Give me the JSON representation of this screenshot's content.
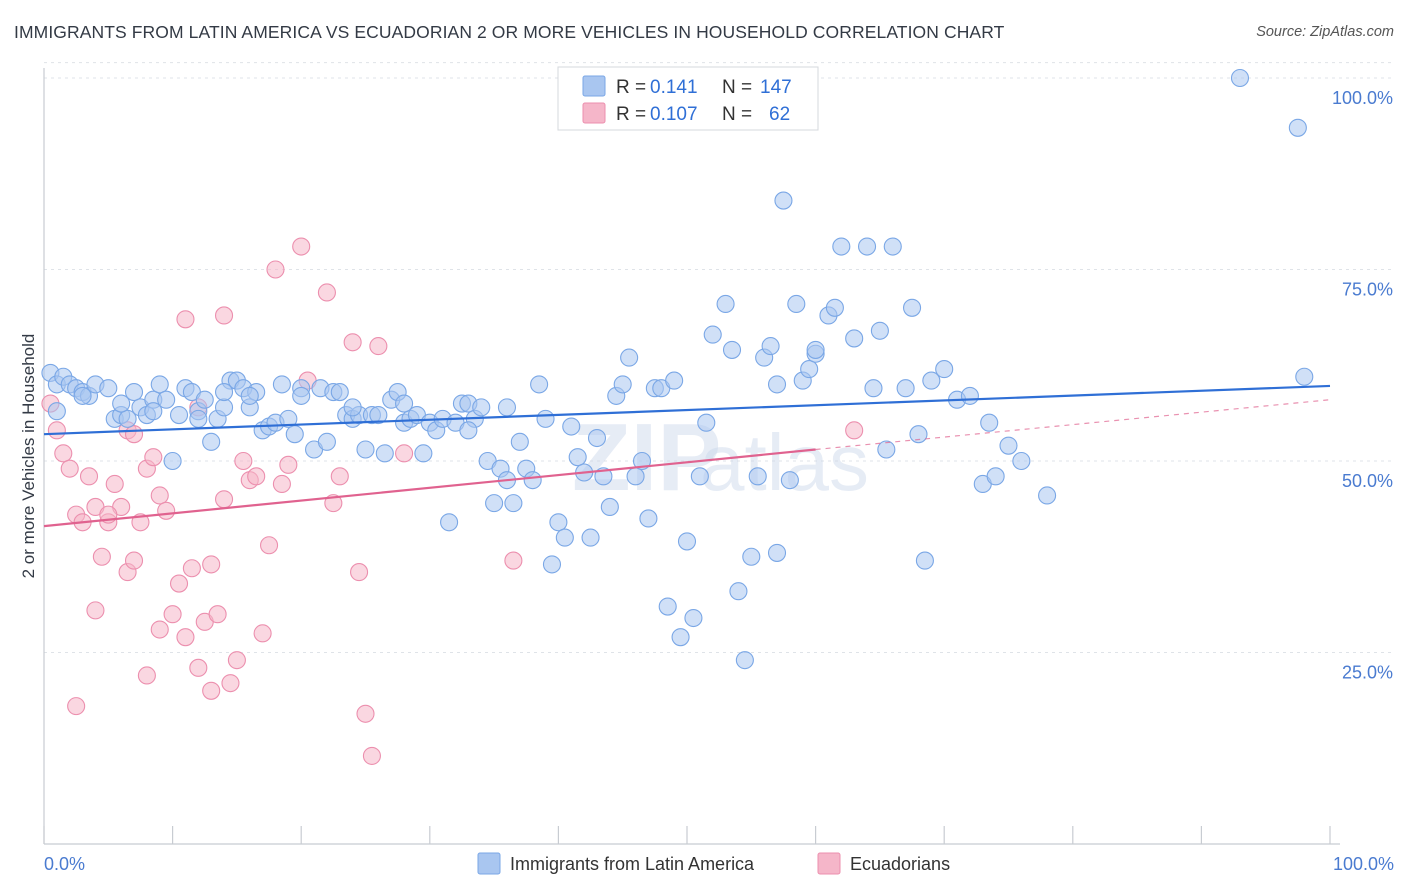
{
  "header": {
    "title": "IMMIGRANTS FROM LATIN AMERICA VS ECUADORIAN 2 OR MORE VEHICLES IN HOUSEHOLD CORRELATION CHART",
    "source": "Source: ZipAtlas.com"
  },
  "watermark": {
    "zip": "ZIP",
    "atlas": "atlas"
  },
  "legend_top": {
    "rows": [
      {
        "r_label": "R =",
        "r_value": "0.141",
        "n_label": "N =",
        "n_value": "147",
        "color": "#a9c6f0"
      },
      {
        "r_label": "R =",
        "r_value": "0.107",
        "n_label": "N =",
        "n_value": "62",
        "color": "#f5b6c9"
      }
    ]
  },
  "legend_bottom": {
    "items": [
      {
        "label": "Immigrants from Latin America",
        "color": "#a9c6f0"
      },
      {
        "label": "Ecuadorians",
        "color": "#f5b6c9"
      }
    ]
  },
  "chart_data": {
    "type": "scatter",
    "title": "IMMIGRANTS FROM LATIN AMERICA VS ECUADORIAN 2 OR MORE VEHICLES IN HOUSEHOLD CORRELATION CHART",
    "xlabel": "",
    "ylabel": "2 or more Vehicles in Household",
    "xlim": [
      0,
      100
    ],
    "ylim": [
      0,
      102
    ],
    "x_tick_labels": [
      "0.0%",
      "100.0%"
    ],
    "y_ticks": [
      25,
      50,
      75,
      100
    ],
    "y_tick_labels": [
      "25.0%",
      "50.0%",
      "75.0%",
      "100.0%"
    ],
    "grid": true,
    "series": [
      {
        "name": "Immigrants from Latin America",
        "color": "#7aa7e6",
        "fill": "#a9c6f0",
        "trend": {
          "x": [
            0,
            100
          ],
          "y": [
            53.5,
            59.8
          ],
          "color": "#2f6fd6",
          "style": "solid"
        },
        "points": [
          [
            0.5,
            61.5
          ],
          [
            1,
            60
          ],
          [
            1.5,
            61
          ],
          [
            2,
            60
          ],
          [
            2.5,
            59.5
          ],
          [
            3,
            59
          ],
          [
            3.5,
            58.5
          ],
          [
            4,
            60
          ],
          [
            5,
            59.5
          ],
          [
            5.5,
            55.5
          ],
          [
            6,
            56
          ],
          [
            6.5,
            55.5
          ],
          [
            7,
            59
          ],
          [
            7.5,
            57
          ],
          [
            8,
            56
          ],
          [
            8.5,
            58
          ],
          [
            9,
            60
          ],
          [
            9.5,
            58
          ],
          [
            10,
            50
          ],
          [
            10.5,
            56
          ],
          [
            11,
            59.5
          ],
          [
            11.5,
            59
          ],
          [
            12,
            56.5
          ],
          [
            12.5,
            58
          ],
          [
            13,
            52.5
          ],
          [
            13.5,
            55.5
          ],
          [
            14,
            57
          ],
          [
            14.5,
            60.5
          ],
          [
            15,
            60.5
          ],
          [
            15.5,
            59.5
          ],
          [
            16,
            57
          ],
          [
            16.5,
            59
          ],
          [
            17,
            54
          ],
          [
            17.5,
            54.5
          ],
          [
            18,
            55
          ],
          [
            18.5,
            60
          ],
          [
            19,
            55.5
          ],
          [
            19.5,
            53.5
          ],
          [
            20,
            59.5
          ],
          [
            21,
            51.5
          ],
          [
            21.5,
            59.5
          ],
          [
            22,
            52.5
          ],
          [
            22.5,
            59
          ],
          [
            23,
            59
          ],
          [
            23.5,
            56
          ],
          [
            24,
            55.5
          ],
          [
            24.5,
            56
          ],
          [
            25,
            51.5
          ],
          [
            25.5,
            56
          ],
          [
            26,
            56
          ],
          [
            26.5,
            51
          ],
          [
            27,
            58
          ],
          [
            27.5,
            59
          ],
          [
            28,
            55
          ],
          [
            28.5,
            55.5
          ],
          [
            29,
            56
          ],
          [
            29.5,
            51
          ],
          [
            30,
            55
          ],
          [
            30.5,
            54
          ],
          [
            31,
            55.5
          ],
          [
            31.5,
            42
          ],
          [
            32,
            55
          ],
          [
            32.5,
            57.5
          ],
          [
            33,
            57.5
          ],
          [
            33.5,
            55.5
          ],
          [
            34,
            57
          ],
          [
            34.5,
            50
          ],
          [
            35,
            44.5
          ],
          [
            35.5,
            49
          ],
          [
            36,
            47.5
          ],
          [
            36.5,
            44.5
          ],
          [
            37,
            52.5
          ],
          [
            37.5,
            49
          ],
          [
            38,
            47.5
          ],
          [
            38.5,
            60
          ],
          [
            39,
            55.5
          ],
          [
            39.5,
            36.5
          ],
          [
            40,
            42
          ],
          [
            40.5,
            40
          ],
          [
            41,
            54.5
          ],
          [
            41.5,
            50.5
          ],
          [
            42,
            48.5
          ],
          [
            42.5,
            40
          ],
          [
            43,
            53
          ],
          [
            43.5,
            48
          ],
          [
            44,
            44
          ],
          [
            44.5,
            58.5
          ],
          [
            45,
            60
          ],
          [
            45.5,
            63.5
          ],
          [
            46,
            48
          ],
          [
            46.5,
            50
          ],
          [
            47,
            42.5
          ],
          [
            47.5,
            59.5
          ],
          [
            48,
            59.5
          ],
          [
            48.5,
            31
          ],
          [
            49,
            60.5
          ],
          [
            49.5,
            27
          ],
          [
            50,
            39.5
          ],
          [
            50.5,
            29.5
          ],
          [
            51,
            48
          ],
          [
            51.5,
            55
          ],
          [
            52,
            66.5
          ],
          [
            53,
            70.5
          ],
          [
            53.5,
            64.5
          ],
          [
            54,
            33
          ],
          [
            54.5,
            24
          ],
          [
            55,
            37.5
          ],
          [
            55.5,
            48
          ],
          [
            56,
            63.5
          ],
          [
            56.5,
            65
          ],
          [
            57,
            60
          ],
          [
            57.5,
            84
          ],
          [
            58,
            47.5
          ],
          [
            58.5,
            70.5
          ],
          [
            59,
            60.5
          ],
          [
            59.5,
            62
          ],
          [
            60,
            64
          ],
          [
            61,
            69
          ],
          [
            61.5,
            70
          ],
          [
            62,
            78
          ],
          [
            63,
            66
          ],
          [
            64,
            78
          ],
          [
            64.5,
            59.5
          ],
          [
            65,
            67
          ],
          [
            65.5,
            51.5
          ],
          [
            66,
            78
          ],
          [
            67,
            59.5
          ],
          [
            67.5,
            70
          ],
          [
            68,
            53.5
          ],
          [
            68.5,
            37
          ],
          [
            69,
            60.5
          ],
          [
            70,
            62
          ],
          [
            71,
            58
          ],
          [
            72,
            58.5
          ],
          [
            73,
            47
          ],
          [
            73.5,
            55
          ],
          [
            74,
            48
          ],
          [
            75,
            52
          ],
          [
            76,
            50
          ],
          [
            78,
            45.5
          ],
          [
            98,
            61
          ],
          [
            1,
            56.5
          ],
          [
            3,
            58.5
          ],
          [
            6,
            57.5
          ],
          [
            8.5,
            56.5
          ],
          [
            12,
            55.5
          ],
          [
            14,
            59
          ],
          [
            16,
            58.5
          ],
          [
            20,
            58.5
          ],
          [
            24,
            57
          ],
          [
            28,
            57.5
          ],
          [
            33,
            54
          ],
          [
            36,
            57
          ],
          [
            93,
            100
          ],
          [
            97.5,
            93.5
          ],
          [
            57,
            38
          ],
          [
            60,
            64.5
          ]
        ]
      },
      {
        "name": "Ecuadorians",
        "color": "#ec8fae",
        "fill": "#f5b6c9",
        "trend": {
          "x": [
            0,
            60
          ],
          "y": [
            41.5,
            51.5
          ],
          "color": "#e0628f",
          "style": "solid",
          "dashed_extension": {
            "x": [
              60,
              100
            ],
            "y": [
              51.5,
              58
            ]
          }
        },
        "points": [
          [
            0.5,
            57.5
          ],
          [
            1,
            54
          ],
          [
            1.5,
            51
          ],
          [
            2,
            49
          ],
          [
            2.5,
            43
          ],
          [
            3,
            42
          ],
          [
            3.5,
            48
          ],
          [
            4,
            44
          ],
          [
            4.5,
            37.5
          ],
          [
            5,
            42
          ],
          [
            5.5,
            47
          ],
          [
            6,
            44
          ],
          [
            6.5,
            35.5
          ],
          [
            7,
            37
          ],
          [
            7.5,
            42
          ],
          [
            8,
            49
          ],
          [
            8.5,
            50.5
          ],
          [
            9,
            45.5
          ],
          [
            9.5,
            43.5
          ],
          [
            10,
            30
          ],
          [
            10.5,
            34
          ],
          [
            11,
            27
          ],
          [
            11.5,
            36
          ],
          [
            12,
            23
          ],
          [
            12.5,
            29
          ],
          [
            13,
            36.5
          ],
          [
            13.5,
            30
          ],
          [
            14,
            45
          ],
          [
            14.5,
            21
          ],
          [
            15,
            24
          ],
          [
            15.5,
            50
          ],
          [
            16,
            47.5
          ],
          [
            16.5,
            48
          ],
          [
            17,
            27.5
          ],
          [
            17.5,
            39
          ],
          [
            18,
            75
          ],
          [
            18.5,
            47
          ],
          [
            19,
            49.5
          ],
          [
            20,
            78
          ],
          [
            20.5,
            60.5
          ],
          [
            22,
            72
          ],
          [
            22.5,
            44.5
          ],
          [
            23,
            48
          ],
          [
            24,
            65.5
          ],
          [
            24.5,
            35.5
          ],
          [
            25,
            17
          ],
          [
            25.5,
            11.5
          ],
          [
            26,
            65
          ],
          [
            28,
            51
          ],
          [
            36.5,
            37
          ],
          [
            63,
            54
          ],
          [
            2.5,
            18
          ],
          [
            4,
            30.5
          ],
          [
            8,
            22
          ],
          [
            11,
            68.5
          ],
          [
            14,
            69
          ],
          [
            6.5,
            54
          ],
          [
            9,
            28
          ],
          [
            12,
            57
          ],
          [
            13,
            20
          ],
          [
            5,
            43
          ],
          [
            7,
            53.5
          ]
        ]
      }
    ]
  },
  "axes": {
    "ylabel": "2 or more Vehicles in Household",
    "x_left_label": "0.0%",
    "x_right_label": "100.0%"
  }
}
